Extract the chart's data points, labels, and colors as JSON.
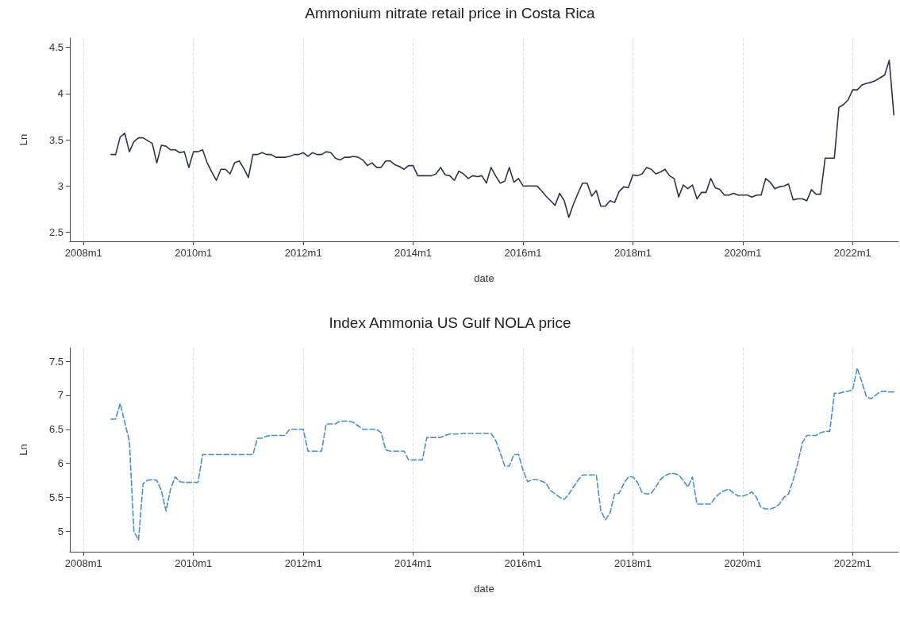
{
  "chart_data": [
    {
      "type": "line",
      "title": "Ammonium nitrate retail price in Costa Rica",
      "xlabel": "date",
      "ylabel": "Ln",
      "grid": "x",
      "marker": "none",
      "line_style": "solid",
      "xlim": [
        "2007-10",
        "2022-11"
      ],
      "xticks": [
        {
          "value": "2008-01",
          "label": "2008m1"
        },
        {
          "value": "2010-01",
          "label": "2010m1"
        },
        {
          "value": "2012-01",
          "label": "2012m1"
        },
        {
          "value": "2014-01",
          "label": "2014m1"
        },
        {
          "value": "2016-01",
          "label": "2016m1"
        },
        {
          "value": "2018-01",
          "label": "2018m1"
        },
        {
          "value": "2020-01",
          "label": "2020m1"
        },
        {
          "value": "2022-01",
          "label": "2022m1"
        }
      ],
      "ylim": [
        2.4,
        4.6
      ],
      "yticks": [
        2.5,
        3,
        3.5,
        4,
        4.5
      ],
      "x": [
        "2008-07",
        "2008-08",
        "2008-09",
        "2008-10",
        "2008-11",
        "2008-12",
        "2009-01",
        "2009-02",
        "2009-03",
        "2009-04",
        "2009-05",
        "2009-06",
        "2009-07",
        "2009-08",
        "2009-09",
        "2009-10",
        "2009-11",
        "2009-12",
        "2010-01",
        "2010-02",
        "2010-03",
        "2010-04",
        "2010-05",
        "2010-06",
        "2010-07",
        "2010-08",
        "2010-09",
        "2010-10",
        "2010-11",
        "2010-12",
        "2011-01",
        "2011-02",
        "2011-03",
        "2011-04",
        "2011-05",
        "2011-06",
        "2011-07",
        "2011-08",
        "2011-09",
        "2011-10",
        "2011-11",
        "2011-12",
        "2012-01",
        "2012-02",
        "2012-03",
        "2012-04",
        "2012-05",
        "2012-06",
        "2012-07",
        "2012-08",
        "2012-09",
        "2012-10",
        "2012-11",
        "2012-12",
        "2013-01",
        "2013-02",
        "2013-03",
        "2013-04",
        "2013-05",
        "2013-06",
        "2013-07",
        "2013-08",
        "2013-09",
        "2013-10",
        "2013-11",
        "2013-12",
        "2014-01",
        "2014-02",
        "2014-03",
        "2014-04",
        "2014-05",
        "2014-06",
        "2014-07",
        "2014-08",
        "2014-09",
        "2014-10",
        "2014-11",
        "2014-12",
        "2015-01",
        "2015-02",
        "2015-03",
        "2015-04",
        "2015-05",
        "2015-06",
        "2015-07",
        "2015-08",
        "2015-09",
        "2015-10",
        "2015-11",
        "2015-12",
        "2016-01",
        "2016-02",
        "2016-03",
        "2016-04",
        "2016-05",
        "2016-06",
        "2016-07",
        "2016-08",
        "2016-09",
        "2016-10",
        "2016-11",
        "2016-12",
        "2017-01",
        "2017-02",
        "2017-03",
        "2017-04",
        "2017-05",
        "2017-06",
        "2017-07",
        "2017-08",
        "2017-09",
        "2017-10",
        "2017-11",
        "2017-12",
        "2018-01",
        "2018-02",
        "2018-03",
        "2018-04",
        "2018-05",
        "2018-06",
        "2018-07",
        "2018-08",
        "2018-09",
        "2018-10",
        "2018-11",
        "2018-12",
        "2019-01",
        "2019-02",
        "2019-03",
        "2019-04",
        "2019-05",
        "2019-06",
        "2019-07",
        "2019-08",
        "2019-09",
        "2019-10",
        "2019-11",
        "2019-12",
        "2020-01",
        "2020-02",
        "2020-03",
        "2020-04",
        "2020-05",
        "2020-06",
        "2020-07",
        "2020-08",
        "2020-09",
        "2020-10",
        "2020-11",
        "2020-12",
        "2021-01",
        "2021-02",
        "2021-03",
        "2021-04",
        "2021-05",
        "2021-06",
        "2021-07",
        "2021-08",
        "2021-09",
        "2021-10",
        "2021-11",
        "2021-12",
        "2022-01",
        "2022-02",
        "2022-03",
        "2022-04",
        "2022-05",
        "2022-06",
        "2022-07",
        "2022-08",
        "2022-09",
        "2022-10"
      ],
      "series": [
        {
          "color": "#2b3547",
          "values": [
            3.34,
            3.34,
            3.53,
            3.57,
            3.37,
            3.48,
            3.52,
            3.52,
            3.49,
            3.46,
            3.25,
            3.44,
            3.43,
            3.39,
            3.39,
            3.36,
            3.37,
            3.2,
            3.37,
            3.37,
            3.39,
            3.25,
            3.15,
            3.06,
            3.18,
            3.18,
            3.13,
            3.25,
            3.27,
            3.19,
            3.09,
            3.34,
            3.34,
            3.36,
            3.34,
            3.34,
            3.31,
            3.31,
            3.31,
            3.32,
            3.34,
            3.34,
            3.36,
            3.32,
            3.36,
            3.34,
            3.34,
            3.37,
            3.36,
            3.3,
            3.28,
            3.31,
            3.31,
            3.32,
            3.31,
            3.28,
            3.22,
            3.25,
            3.2,
            3.2,
            3.27,
            3.27,
            3.23,
            3.21,
            3.18,
            3.22,
            3.22,
            3.11,
            3.11,
            3.11,
            3.11,
            3.13,
            3.2,
            3.12,
            3.11,
            3.06,
            3.16,
            3.13,
            3.08,
            3.11,
            3.1,
            3.11,
            3.03,
            3.2,
            3.11,
            3.03,
            3.05,
            3.2,
            3.04,
            3.08,
            3.0,
            3.0,
            3.0,
            3.0,
            2.95,
            2.89,
            2.84,
            2.79,
            2.92,
            2.84,
            2.66,
            2.8,
            2.92,
            3.03,
            3.03,
            2.89,
            2.95,
            2.78,
            2.78,
            2.84,
            2.82,
            2.94,
            2.99,
            2.98,
            3.12,
            3.11,
            3.13,
            3.2,
            3.18,
            3.13,
            3.15,
            3.18,
            3.11,
            3.08,
            2.88,
            3.01,
            2.97,
            3.01,
            2.86,
            2.93,
            2.93,
            3.08,
            2.98,
            2.96,
            2.9,
            2.9,
            2.92,
            2.9,
            2.9,
            2.9,
            2.88,
            2.9,
            2.9,
            3.08,
            3.04,
            2.97,
            2.99,
            3.0,
            3.02,
            2.85,
            2.86,
            2.86,
            2.84,
            2.96,
            2.91,
            2.91,
            3.3,
            3.3,
            3.3,
            3.85,
            3.88,
            3.93,
            4.04,
            4.04,
            4.09,
            4.11,
            4.12,
            4.14,
            4.17,
            4.2,
            4.36,
            3.77
          ]
        }
      ]
    },
    {
      "type": "line",
      "title": "Index Ammonia US Gulf NOLA price",
      "xlabel": "date",
      "ylabel": "Ln",
      "grid": "x",
      "marker": "none",
      "line_style": "dashed",
      "xlim": [
        "2007-10",
        "2022-11"
      ],
      "xticks": [
        {
          "value": "2008-01",
          "label": "2008m1"
        },
        {
          "value": "2010-01",
          "label": "2010m1"
        },
        {
          "value": "2012-01",
          "label": "2012m1"
        },
        {
          "value": "2014-01",
          "label": "2014m1"
        },
        {
          "value": "2016-01",
          "label": "2016m1"
        },
        {
          "value": "2018-01",
          "label": "2018m1"
        },
        {
          "value": "2020-01",
          "label": "2020m1"
        },
        {
          "value": "2022-01",
          "label": "2022m1"
        }
      ],
      "ylim": [
        4.7,
        7.7
      ],
      "yticks": [
        5,
        5.5,
        6,
        6.5,
        7,
        7.5
      ],
      "x": [
        "2008-07",
        "2008-08",
        "2008-09",
        "2008-10",
        "2008-11",
        "2008-12",
        "2009-01",
        "2009-02",
        "2009-03",
        "2009-04",
        "2009-05",
        "2009-06",
        "2009-07",
        "2009-08",
        "2009-09",
        "2009-10",
        "2009-11",
        "2009-12",
        "2010-01",
        "2010-02",
        "2010-03",
        "2010-04",
        "2010-05",
        "2010-06",
        "2010-07",
        "2010-08",
        "2010-09",
        "2010-10",
        "2010-11",
        "2010-12",
        "2011-01",
        "2011-02",
        "2011-03",
        "2011-04",
        "2011-05",
        "2011-06",
        "2011-07",
        "2011-08",
        "2011-09",
        "2011-10",
        "2011-11",
        "2011-12",
        "2012-01",
        "2012-02",
        "2012-03",
        "2012-04",
        "2012-05",
        "2012-06",
        "2012-07",
        "2012-08",
        "2012-09",
        "2012-10",
        "2012-11",
        "2012-12",
        "2013-01",
        "2013-02",
        "2013-03",
        "2013-04",
        "2013-05",
        "2013-06",
        "2013-07",
        "2013-08",
        "2013-09",
        "2013-10",
        "2013-11",
        "2013-12",
        "2014-01",
        "2014-02",
        "2014-03",
        "2014-04",
        "2014-05",
        "2014-06",
        "2014-07",
        "2014-08",
        "2014-09",
        "2014-10",
        "2014-11",
        "2014-12",
        "2015-01",
        "2015-02",
        "2015-03",
        "2015-04",
        "2015-05",
        "2015-06",
        "2015-07",
        "2015-08",
        "2015-09",
        "2015-10",
        "2015-11",
        "2015-12",
        "2016-01",
        "2016-02",
        "2016-03",
        "2016-04",
        "2016-05",
        "2016-06",
        "2016-07",
        "2016-08",
        "2016-09",
        "2016-10",
        "2016-11",
        "2016-12",
        "2017-01",
        "2017-02",
        "2017-03",
        "2017-04",
        "2017-05",
        "2017-06",
        "2017-07",
        "2017-08",
        "2017-09",
        "2017-10",
        "2017-11",
        "2017-12",
        "2018-01",
        "2018-02",
        "2018-03",
        "2018-04",
        "2018-05",
        "2018-06",
        "2018-07",
        "2018-08",
        "2018-09",
        "2018-10",
        "2018-11",
        "2018-12",
        "2019-01",
        "2019-02",
        "2019-03",
        "2019-04",
        "2019-05",
        "2019-06",
        "2019-07",
        "2019-08",
        "2019-09",
        "2019-10",
        "2019-11",
        "2019-12",
        "2020-01",
        "2020-02",
        "2020-03",
        "2020-04",
        "2020-05",
        "2020-06",
        "2020-07",
        "2020-08",
        "2020-09",
        "2020-10",
        "2020-11",
        "2020-12",
        "2021-01",
        "2021-02",
        "2021-03",
        "2021-04",
        "2021-05",
        "2021-06",
        "2021-07",
        "2021-08",
        "2021-09",
        "2021-10",
        "2021-11",
        "2021-12",
        "2022-01",
        "2022-02",
        "2022-03",
        "2022-04",
        "2022-05",
        "2022-06",
        "2022-07",
        "2022-08",
        "2022-09",
        "2022-10"
      ],
      "series": [
        {
          "color": "#4a8fc9",
          "values": [
            6.65,
            6.65,
            6.88,
            6.6,
            6.33,
            5.0,
            4.87,
            5.7,
            5.75,
            5.76,
            5.75,
            5.6,
            5.3,
            5.62,
            5.8,
            5.73,
            5.72,
            5.72,
            5.72,
            5.72,
            6.13,
            6.13,
            6.13,
            6.13,
            6.13,
            6.13,
            6.13,
            6.13,
            6.13,
            6.13,
            6.13,
            6.13,
            6.37,
            6.37,
            6.4,
            6.41,
            6.41,
            6.41,
            6.41,
            6.5,
            6.5,
            6.5,
            6.5,
            6.18,
            6.18,
            6.18,
            6.18,
            6.58,
            6.58,
            6.58,
            6.62,
            6.62,
            6.62,
            6.6,
            6.55,
            6.5,
            6.5,
            6.5,
            6.5,
            6.45,
            6.2,
            6.18,
            6.18,
            6.18,
            6.18,
            6.05,
            6.05,
            6.05,
            6.05,
            6.38,
            6.38,
            6.38,
            6.38,
            6.41,
            6.43,
            6.43,
            6.43,
            6.44,
            6.44,
            6.44,
            6.44,
            6.44,
            6.44,
            6.44,
            6.34,
            6.16,
            5.96,
            5.96,
            6.13,
            6.13,
            5.9,
            5.73,
            5.76,
            5.76,
            5.74,
            5.71,
            5.6,
            5.55,
            5.5,
            5.47,
            5.55,
            5.65,
            5.75,
            5.83,
            5.83,
            5.83,
            5.83,
            5.3,
            5.17,
            5.27,
            5.55,
            5.56,
            5.7,
            5.8,
            5.8,
            5.72,
            5.57,
            5.55,
            5.56,
            5.65,
            5.76,
            5.82,
            5.85,
            5.85,
            5.83,
            5.75,
            5.65,
            5.8,
            5.4,
            5.4,
            5.4,
            5.4,
            5.5,
            5.56,
            5.6,
            5.62,
            5.56,
            5.52,
            5.52,
            5.54,
            5.58,
            5.5,
            5.35,
            5.33,
            5.33,
            5.35,
            5.4,
            5.5,
            5.55,
            5.75,
            6.0,
            6.3,
            6.41,
            6.41,
            6.41,
            6.45,
            6.47,
            6.47,
            7.03,
            7.03,
            7.05,
            7.06,
            7.08,
            7.4,
            7.2,
            6.98,
            6.95,
            7.0,
            7.05,
            7.06,
            7.05,
            7.05
          ]
        }
      ]
    }
  ]
}
